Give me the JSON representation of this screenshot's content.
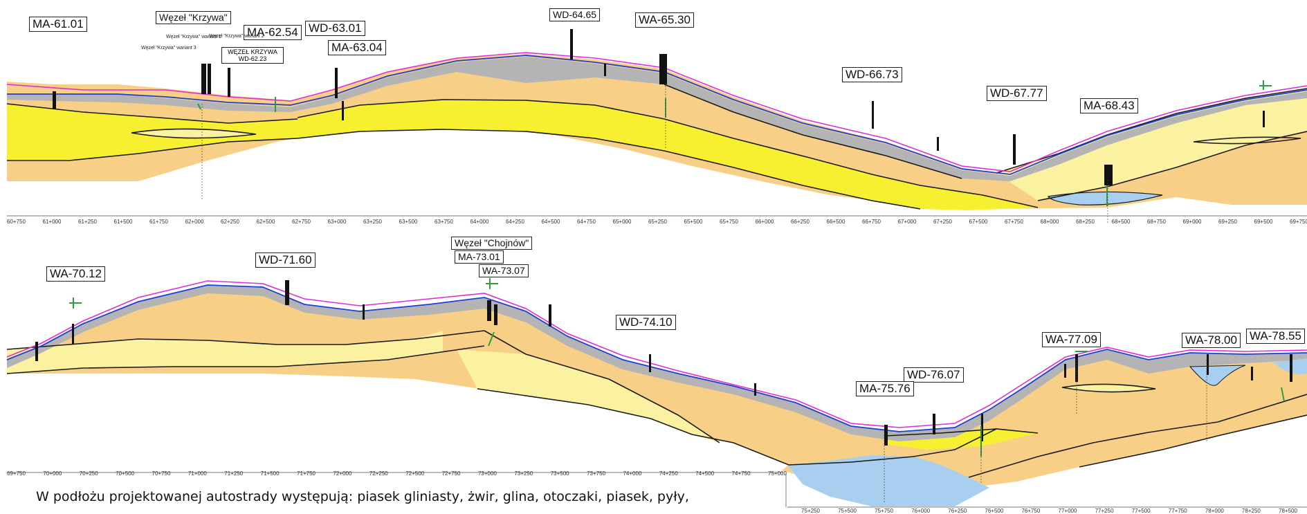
{
  "upper_profile": {
    "labels": [
      "MA-61.01",
      "Węzeł \"Krzywa\"",
      "MA-62.54",
      "WD-63.01",
      "MA-63.04",
      "WD-64.65",
      "WA-65.30",
      "WD-66.73",
      "WD-67.77",
      "MA-68.43"
    ],
    "small_labels": [
      "Węzeł \"Krzywa\" wariant 1",
      "Węzeł \"Krzywa\" wariant 2",
      "Węzeł \"Krzywa\" wariant 3"
    ],
    "box_small": "WĘZEŁ KRZYWA WD-62.23",
    "chainage": [
      "60+750",
      "61+000",
      "61+250",
      "61+500",
      "61+750",
      "62+000",
      "62+250",
      "62+500",
      "62+750",
      "63+000",
      "63+250",
      "63+500",
      "63+750",
      "64+000",
      "64+250",
      "64+500",
      "64+750",
      "65+000",
      "65+250",
      "65+500",
      "65+750",
      "66+000",
      "66+250",
      "66+500",
      "66+750",
      "67+000",
      "67+250",
      "67+500",
      "67+750",
      "68+000",
      "68+250",
      "68+500",
      "68+750",
      "69+000",
      "69+250",
      "69+500",
      "69+750"
    ]
  },
  "lower_profile": {
    "labels": [
      "WA-70.12",
      "WD-71.60",
      "Węzeł \"Chojnów\"",
      "MA-73.01",
      "WA-73.07",
      "WD-74.10",
      "WD-76.07",
      "MA-75.76",
      "WA-77.09",
      "WA-78.00",
      "WA-78.55"
    ],
    "chainage": [
      "69+750",
      "70+000",
      "70+250",
      "70+500",
      "70+750",
      "71+000",
      "71+250",
      "71+500",
      "71+750",
      "72+000",
      "72+250",
      "72+500",
      "72+750",
      "73+000",
      "73+250",
      "73+500",
      "73+750",
      "74+000",
      "74+250",
      "74+500",
      "74+750",
      "75+000"
    ],
    "chainage_right": [
      "75+250",
      "75+500",
      "75+750",
      "76+000",
      "76+250",
      "76+500",
      "76+750",
      "77+000",
      "77+250",
      "77+500",
      "77+750",
      "78+000",
      "78+250",
      "78+500"
    ]
  },
  "caption": "W podłożu projektowanej autostrady występują: piasek gliniasty, żwir, glina, otoczaki, piasek, pyły,",
  "colors": {
    "sand": "#f8cf86",
    "bright_sand": "#f7f031",
    "pale_yellow": "#faf2a0",
    "fill_gray": "#b4b4b4",
    "water": "#a9cff0",
    "road_line": "#e22ad6",
    "terrain_line": "#1f3fd2",
    "boundary": "#1a1a1a",
    "survey_green": "#2e9e3a"
  }
}
